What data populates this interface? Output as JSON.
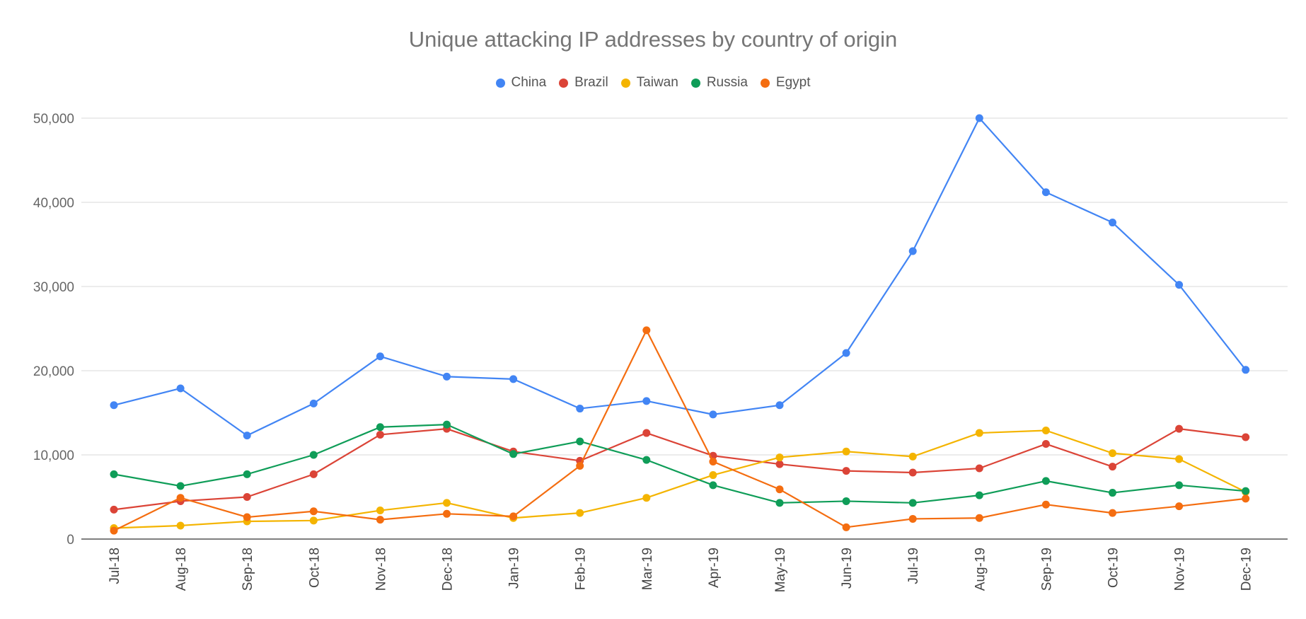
{
  "chart_data": {
    "type": "line",
    "title": "Unique attacking IP addresses by country of origin",
    "xlabel": "",
    "ylabel": "",
    "ylim": [
      0,
      50000
    ],
    "y_ticks": [
      "0",
      "10,000",
      "20,000",
      "30,000",
      "40,000",
      "50,000"
    ],
    "y_tick_values": [
      0,
      10000,
      20000,
      30000,
      40000,
      50000
    ],
    "legend_position": "top-center",
    "grid": true,
    "categories": [
      "Jul-18",
      "Aug-18",
      "Sep-18",
      "Oct-18",
      "Nov-18",
      "Dec-18",
      "Jan-19",
      "Feb-19",
      "Mar-19",
      "Apr-19",
      "May-19",
      "Jun-19",
      "Jul-19",
      "Aug-19",
      "Sep-19",
      "Oct-19",
      "Nov-19",
      "Dec-19"
    ],
    "series": [
      {
        "name": "China",
        "color": "#4285F4",
        "values": [
          15900,
          17900,
          12300,
          16100,
          21700,
          19300,
          19000,
          15500,
          16400,
          14800,
          15900,
          22100,
          34200,
          50000,
          41200,
          37600,
          30200,
          20100
        ]
      },
      {
        "name": "Brazil",
        "color": "#DB4437",
        "values": [
          3500,
          4500,
          5000,
          7700,
          12400,
          13100,
          10400,
          9300,
          12600,
          9900,
          8900,
          8100,
          7900,
          8400,
          11300,
          8600,
          13100,
          12100
        ]
      },
      {
        "name": "Taiwan",
        "color": "#F4B400",
        "values": [
          1300,
          1600,
          2100,
          2200,
          3400,
          4300,
          2500,
          3100,
          4900,
          7600,
          9700,
          10400,
          9800,
          12600,
          12900,
          10200,
          9500,
          5600
        ]
      },
      {
        "name": "Russia",
        "color": "#0F9D58",
        "values": [
          7700,
          6300,
          7700,
          10000,
          13300,
          13600,
          10100,
          11600,
          9400,
          6400,
          4300,
          4500,
          4300,
          5200,
          6900,
          5500,
          6400,
          5700
        ]
      },
      {
        "name": "Egypt",
        "color": "#F46D10",
        "values": [
          1000,
          4900,
          2600,
          3300,
          2300,
          3000,
          2700,
          8700,
          24800,
          9200,
          5900,
          1400,
          2400,
          2500,
          4100,
          3100,
          3900,
          4800
        ]
      }
    ]
  }
}
